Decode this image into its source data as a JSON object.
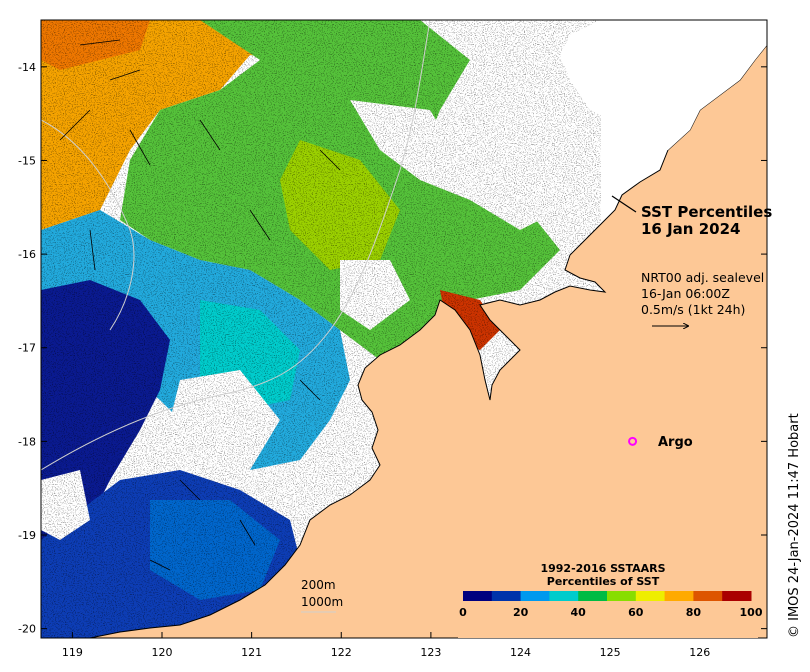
{
  "title": {
    "line1": "SST Percentiles",
    "line2": "16 Jan 2024"
  },
  "current_info": {
    "line1": "NRT00 adj. sealevel",
    "line2": "16-Jan 06:00Z",
    "line3": "0.5m/s (1kt 24h)"
  },
  "argo_label": "Argo",
  "argo_marker": {
    "lon": 125.25,
    "lat": -18.0,
    "color": "#ff00ff"
  },
  "contour_legend": {
    "line1": "200m",
    "line2": "1000m"
  },
  "credit": "© IMOS 24-Jan-2024 11:47 Hobart",
  "colorbar": {
    "title_line1": "1992-2016 SSTAARS",
    "title_line2": "Percentiles of SST",
    "ticks": [
      "0",
      "20",
      "40",
      "60",
      "80",
      "100"
    ],
    "colors": [
      "#00007f",
      "#0033aa",
      "#0099ee",
      "#00cccc",
      "#00bb44",
      "#88dd00",
      "#eeee00",
      "#ffaa00",
      "#dd5500",
      "#aa0000"
    ]
  },
  "axes": {
    "lon_ticks": [
      "119",
      "120",
      "121",
      "122",
      "123",
      "124",
      "125",
      "126"
    ],
    "lat_ticks": [
      "-14",
      "-15",
      "-16",
      "-17",
      "-18",
      "-19",
      "-20"
    ],
    "lon_range": [
      118.65,
      126.75
    ],
    "lat_range": [
      -20.1,
      -13.5
    ]
  },
  "land_color": "#fdc896"
}
